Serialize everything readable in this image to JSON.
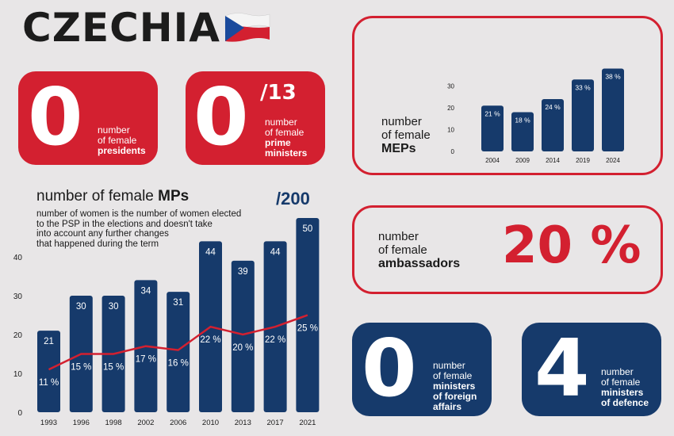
{
  "header": {
    "title": "CZECHIA",
    "flag_icon": "czech-flag-icon"
  },
  "presidents": {
    "value": "0",
    "line1": "number",
    "line2": "of female",
    "line3": "presidents"
  },
  "prime_ministers": {
    "value": "0",
    "suffix": "/13",
    "line1": "number",
    "line2": "of female",
    "line3": "prime",
    "line4": "ministers"
  },
  "meps": {
    "label_line1": "number",
    "label_line2": "of female",
    "label_line3": "MEPs",
    "chart_data": {
      "type": "bar",
      "categories": [
        "2004",
        "2009",
        "2014",
        "2019",
        "2024"
      ],
      "values": [
        21,
        18,
        24,
        33,
        38
      ],
      "value_labels": [
        "21 %",
        "18 %",
        "24 %",
        "33 %",
        "38 %"
      ],
      "ylim": [
        0,
        40
      ],
      "yticks": [
        "0",
        "10",
        "20",
        "30"
      ],
      "grid": false
    }
  },
  "mps": {
    "title_prefix": "number of female ",
    "title_bold": "MPs",
    "total": "/200",
    "note_lines": [
      "number of women is the number of women elected",
      "to the PSP in the elections and doesn't take",
      "into account any further changes",
      "that happened during the term"
    ],
    "chart_data": {
      "type": "bar",
      "categories": [
        "1993",
        "1996",
        "1998",
        "2002",
        "2006",
        "2010",
        "2013",
        "2017",
        "2021"
      ],
      "series": [
        {
          "values": [
            21,
            30,
            30,
            34,
            31,
            44,
            39,
            44,
            50
          ]
        },
        {
          "values": [
            11,
            15,
            15,
            17,
            16,
            22,
            20,
            22,
            25
          ],
          "labels": [
            "11 %",
            "15 %",
            "15 %",
            "17 %",
            "16 %",
            "22 %",
            "20 %",
            "22 %",
            "25 %"
          ]
        }
      ],
      "ylim": [
        0,
        50
      ],
      "yticks": [
        "0",
        "10",
        "20",
        "30",
        "40"
      ],
      "grid": false
    }
  },
  "ambassadors": {
    "line1": "number",
    "line2": "of female",
    "line3": "ambassadors",
    "value": "20 %"
  },
  "foreign_ministers": {
    "value": "0",
    "line1": "number",
    "line2": "of female",
    "line3": "ministers",
    "line4": "of foreign",
    "line5": "affairs"
  },
  "defence_ministers": {
    "value": "4",
    "line1": "number",
    "line2": "of female",
    "line3": "ministers",
    "line4": "of defence"
  },
  "colors": {
    "red": "#d32030",
    "blue": "#163a6b",
    "background": "#e8e6e7"
  }
}
